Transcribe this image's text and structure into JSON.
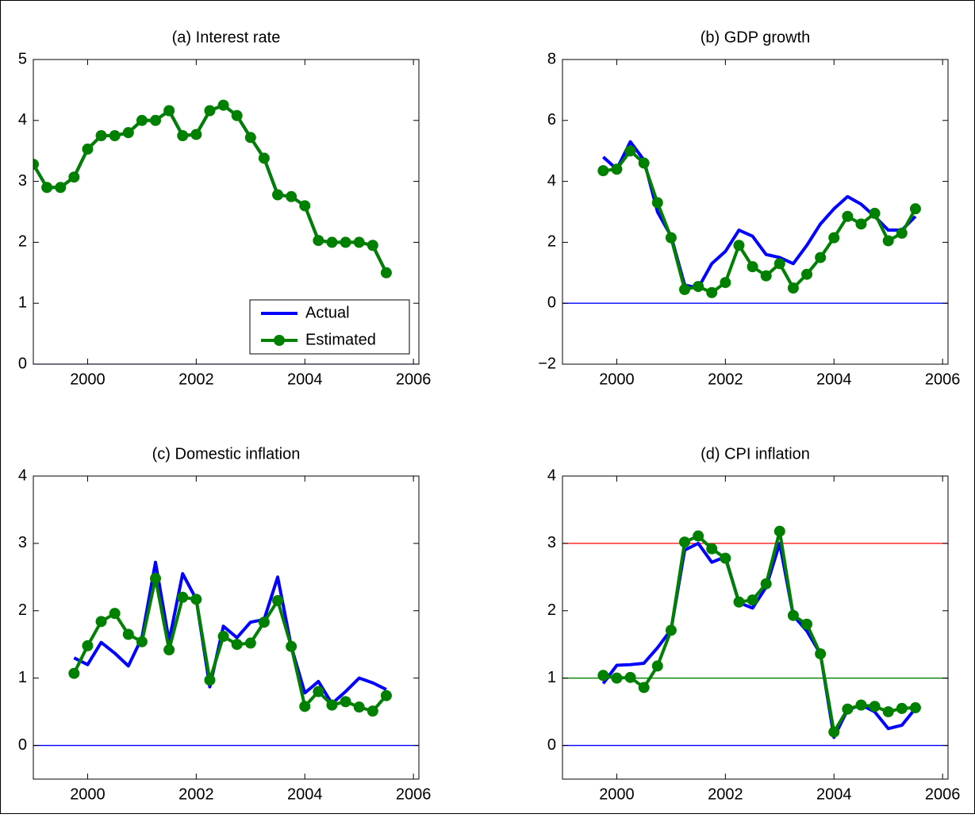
{
  "chart_data": [
    {
      "type": "line",
      "title": "(a) Interest rate",
      "xlim": [
        1999,
        2006.1
      ],
      "xticks": [
        2000,
        2002,
        2004,
        2006
      ],
      "ylim": [
        0,
        5
      ],
      "yticks": [
        0,
        1,
        2,
        3,
        4,
        5
      ],
      "legend": "lower right",
      "x": [
        1999,
        1999.25,
        1999.5,
        1999.75,
        2000,
        2000.25,
        2000.5,
        2000.75,
        2001,
        2001.25,
        2001.5,
        2001.75,
        2002,
        2002.25,
        2002.5,
        2002.75,
        2003,
        2003.25,
        2003.5,
        2003.75,
        2004,
        2004.25,
        2004.5,
        2004.75,
        2005,
        2005.25,
        2005.5
      ],
      "hlines": [
        {
          "value": 0,
          "color": "#0000ff"
        }
      ],
      "series": [
        {
          "name": "Actual",
          "color": "#0000ff",
          "values": [
            3.28,
            2.9,
            2.9,
            3.07,
            3.53,
            3.75,
            3.75,
            3.8,
            4.0,
            4.0,
            4.16,
            3.75,
            3.77,
            4.16,
            4.25,
            4.08,
            3.72,
            3.38,
            2.78,
            2.75,
            2.6,
            2.03,
            2.0,
            2.0,
            2.0,
            1.95,
            1.5
          ]
        },
        {
          "name": "Estimated",
          "color": "#008000",
          "marker": "circle",
          "values": [
            3.28,
            2.9,
            2.9,
            3.07,
            3.53,
            3.75,
            3.75,
            3.8,
            4.0,
            4.0,
            4.16,
            3.75,
            3.77,
            4.16,
            4.25,
            4.08,
            3.72,
            3.38,
            2.78,
            2.75,
            2.6,
            2.03,
            2.0,
            2.0,
            2.0,
            1.95,
            1.5
          ]
        }
      ]
    },
    {
      "type": "line",
      "title": "(b) GDP growth",
      "xlim": [
        1999,
        2006.1
      ],
      "xticks": [
        2000,
        2002,
        2004,
        2006
      ],
      "ylim": [
        -2,
        8
      ],
      "yticks": [
        {
          "value": -2,
          "label": "−2"
        },
        0,
        2,
        4,
        6,
        8
      ],
      "x": [
        1999.75,
        2000,
        2000.25,
        2000.5,
        2000.75,
        2001,
        2001.25,
        2001.5,
        2001.75,
        2002,
        2002.25,
        2002.5,
        2002.75,
        2003,
        2003.25,
        2003.5,
        2003.75,
        2004,
        2004.25,
        2004.5,
        2004.75,
        2005,
        2005.25,
        2005.5
      ],
      "hlines": [
        {
          "value": 0,
          "color": "#0000ff"
        }
      ],
      "series": [
        {
          "color": "#0000ff",
          "values": [
            4.8,
            4.4,
            5.3,
            4.7,
            3.0,
            2.2,
            0.6,
            0.5,
            1.3,
            1.7,
            2.4,
            2.2,
            1.6,
            1.5,
            1.3,
            1.9,
            2.6,
            3.1,
            3.5,
            3.25,
            2.85,
            2.4,
            2.4,
            2.85
          ]
        },
        {
          "color": "#008000",
          "marker": "circle",
          "values": [
            4.35,
            4.4,
            5.0,
            4.6,
            3.3,
            2.15,
            0.45,
            0.55,
            0.35,
            0.68,
            1.9,
            1.2,
            0.9,
            1.3,
            0.5,
            0.95,
            1.5,
            2.15,
            2.85,
            2.6,
            2.95,
            2.05,
            2.3,
            3.1
          ]
        }
      ]
    },
    {
      "type": "line",
      "title": "(c) Domestic inflation",
      "xlim": [
        1999,
        2006.1
      ],
      "xticks": [
        2000,
        2002,
        2004,
        2006
      ],
      "ylim": [
        -0.5,
        4
      ],
      "yticks": [
        0,
        1,
        2,
        3,
        4
      ],
      "x": [
        1999.75,
        2000,
        2000.25,
        2000.5,
        2000.75,
        2001,
        2001.25,
        2001.5,
        2001.75,
        2002,
        2002.25,
        2002.5,
        2002.75,
        2003,
        2003.25,
        2003.5,
        2003.75,
        2004,
        2004.25,
        2004.5,
        2004.75,
        2005,
        2005.25,
        2005.5
      ],
      "hlines": [
        {
          "value": 0,
          "color": "#0000ff"
        }
      ],
      "series": [
        {
          "color": "#0000ff",
          "values": [
            1.3,
            1.2,
            1.53,
            1.37,
            1.18,
            1.6,
            2.72,
            1.55,
            2.55,
            2.17,
            0.87,
            1.77,
            1.6,
            1.83,
            1.87,
            2.5,
            1.47,
            0.78,
            0.95,
            0.62,
            0.8,
            1.0,
            0.93,
            0.83
          ]
        },
        {
          "color": "#008000",
          "marker": "circle",
          "values": [
            1.07,
            1.48,
            1.84,
            1.96,
            1.65,
            1.54,
            2.48,
            1.42,
            2.2,
            2.17,
            0.97,
            1.62,
            1.5,
            1.52,
            1.83,
            2.15,
            1.47,
            0.58,
            0.8,
            0.6,
            0.65,
            0.57,
            0.51,
            0.74
          ]
        }
      ]
    },
    {
      "type": "line",
      "title": "(d) CPI inflation",
      "xlim": [
        1999,
        2006.1
      ],
      "xticks": [
        2000,
        2002,
        2004,
        2006
      ],
      "ylim": [
        -0.5,
        4
      ],
      "yticks": [
        0,
        1,
        2,
        3,
        4
      ],
      "x": [
        1999.75,
        2000,
        2000.25,
        2000.5,
        2000.75,
        2001,
        2001.25,
        2001.5,
        2001.75,
        2002,
        2002.25,
        2002.5,
        2002.75,
        2003,
        2003.25,
        2003.5,
        2003.75,
        2004,
        2004.25,
        2004.5,
        2004.75,
        2005,
        2005.25,
        2005.5
      ],
      "hlines": [
        {
          "value": 0,
          "color": "#0000ff"
        },
        {
          "value": 1,
          "color": "#008000"
        },
        {
          "value": 3,
          "color": "#ff0000"
        }
      ],
      "series": [
        {
          "color": "#0000ff",
          "values": [
            0.92,
            1.19,
            1.2,
            1.22,
            1.45,
            1.72,
            2.9,
            3.0,
            2.72,
            2.8,
            2.12,
            2.04,
            2.35,
            3.0,
            1.93,
            1.7,
            1.36,
            0.12,
            0.53,
            0.6,
            0.5,
            0.25,
            0.3,
            0.55
          ]
        },
        {
          "color": "#008000",
          "marker": "circle",
          "values": [
            1.04,
            1.0,
            1.01,
            0.86,
            1.18,
            1.71,
            3.02,
            3.11,
            2.92,
            2.78,
            2.13,
            2.16,
            2.4,
            3.18,
            1.93,
            1.8,
            1.36,
            0.2,
            0.54,
            0.6,
            0.58,
            0.5,
            0.55,
            0.56
          ]
        }
      ]
    }
  ]
}
